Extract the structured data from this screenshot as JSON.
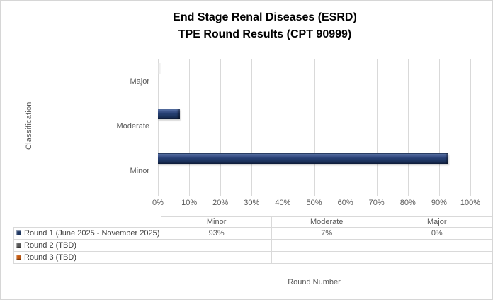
{
  "title": {
    "line1": "End Stage Renal Diseases (ESRD)",
    "line2": "TPE Round Results (CPT 90999)"
  },
  "chart_data": {
    "type": "bar",
    "orientation": "horizontal",
    "title": "End Stage Renal Diseases (ESRD) TPE Round Results (CPT 90999)",
    "xlabel": "Round Number",
    "ylabel": "Classification",
    "categories_top_to_bottom": [
      "Major",
      "Moderate",
      "Minor"
    ],
    "x_ticks": [
      "0%",
      "10%",
      "20%",
      "30%",
      "40%",
      "50%",
      "60%",
      "70%",
      "80%",
      "90%",
      "100%"
    ],
    "xlim": [
      0,
      100
    ],
    "grid": true,
    "series": [
      {
        "name": "Round 1 (June 2025 - November 2025)",
        "color": "#1F3864",
        "values": {
          "Minor": 93,
          "Moderate": 7,
          "Major": 0
        }
      },
      {
        "name": "Round 2 (TBD)",
        "color": "#595959",
        "values": {}
      },
      {
        "name": "Round 3 (TBD)",
        "color": "#C55A11",
        "values": {}
      }
    ],
    "legend_position": "data-table-left-column"
  },
  "data_table": {
    "column_headers": [
      "Minor",
      "Moderate",
      "Major"
    ],
    "rows": [
      {
        "label": "Round 1 (June 2025 - November 2025)",
        "marker_color": "#1F3864",
        "values": [
          "93%",
          "7%",
          "0%"
        ]
      },
      {
        "label": "Round 2 (TBD)",
        "marker_color": "#595959",
        "values": [
          "",
          "",
          ""
        ]
      },
      {
        "label": "Round 3 (TBD)",
        "marker_color": "#C55A11",
        "values": [
          "",
          "",
          ""
        ]
      }
    ]
  },
  "colors": {
    "bar_navy": "#1F3864",
    "series2_gray": "#595959",
    "series3_orange": "#C55A11",
    "gridline": "#D9D9D9",
    "table_border": "#D9D9D9",
    "axis_text": "#595959",
    "legend_text": "#404040",
    "title_text": "#000000",
    "figure_border": "#D6D6D6"
  }
}
